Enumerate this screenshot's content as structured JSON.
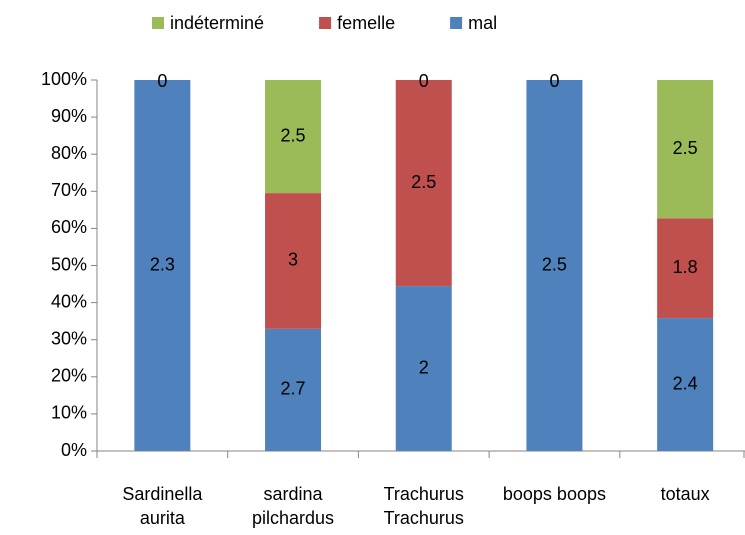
{
  "chart_data": {
    "type": "bar",
    "stacked": "percent",
    "categories": [
      "Sardinella aurita",
      "sardina pilchardus",
      "Trachurus Trachurus",
      "boops boops",
      "totaux"
    ],
    "series": [
      {
        "name": "mal",
        "color": "#4f81bd",
        "values": [
          2.3,
          2.7,
          2,
          2.5,
          2.4
        ]
      },
      {
        "name": "femelle",
        "color": "#c0504d",
        "values": [
          0,
          3,
          2.5,
          0,
          1.8
        ]
      },
      {
        "name": "indéterminé",
        "color": "#9bbb59",
        "values": [
          null,
          2.5,
          0,
          null,
          2.5
        ]
      }
    ],
    "ylim": [
      0,
      100
    ],
    "yticks": [
      {
        "value": 0,
        "label": "0%"
      },
      {
        "value": 10,
        "label": "10%"
      },
      {
        "value": 20,
        "label": "20%"
      },
      {
        "value": 30,
        "label": "30%"
      },
      {
        "value": 40,
        "label": "40%"
      },
      {
        "value": 50,
        "label": "50%"
      },
      {
        "value": 60,
        "label": "60%"
      },
      {
        "value": 70,
        "label": "70%"
      },
      {
        "value": 80,
        "label": "80%"
      },
      {
        "value": 90,
        "label": "90%"
      },
      {
        "value": 100,
        "label": "100%"
      }
    ],
    "legend": "top",
    "grid": false
  }
}
